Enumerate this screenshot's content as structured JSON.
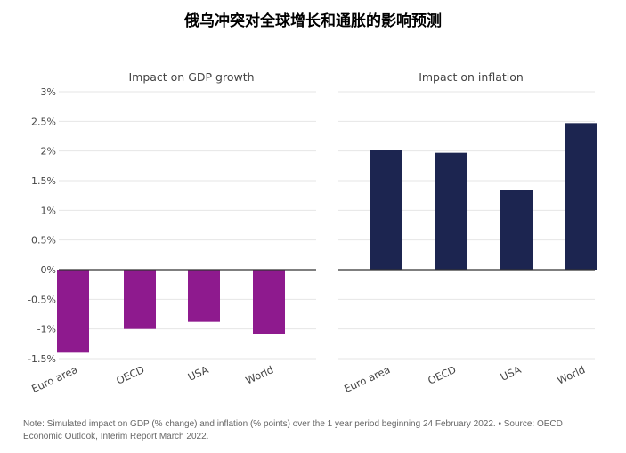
{
  "title": "俄乌冲突对全球增长和通胀的影响预测",
  "note": "Note: Simulated impact on GDP (% change) and inflation (% points) over the 1 year period beginning 24 February 2022. • Source: OECD Economic Outlook, Interim Report March 2022.",
  "chart_data": [
    {
      "type": "bar",
      "title": "Impact on GDP growth",
      "categories": [
        "Euro area",
        "OECD",
        "USA",
        "World"
      ],
      "values": [
        -1.4,
        -1.0,
        -0.88,
        -1.08
      ],
      "color": "#8e1a8e",
      "ylim": [
        -1.5,
        3
      ],
      "yticks": [
        3,
        2.5,
        2,
        1.5,
        1,
        0.5,
        0,
        -0.5,
        -1,
        -1.5
      ],
      "yticklabels": [
        "3%",
        "2.5%",
        "2%",
        "1.5%",
        "1%",
        "0.5%",
        "0%",
        "-0.5%",
        "-1%",
        "-1.5%"
      ],
      "grid": true
    },
    {
      "type": "bar",
      "title": "Impact on inflation",
      "categories": [
        "Euro area",
        "OECD",
        "USA",
        "World"
      ],
      "values": [
        2.02,
        1.97,
        1.35,
        2.47
      ],
      "color": "#1c2550",
      "ylim": [
        -1.5,
        3
      ],
      "grid": true
    }
  ]
}
